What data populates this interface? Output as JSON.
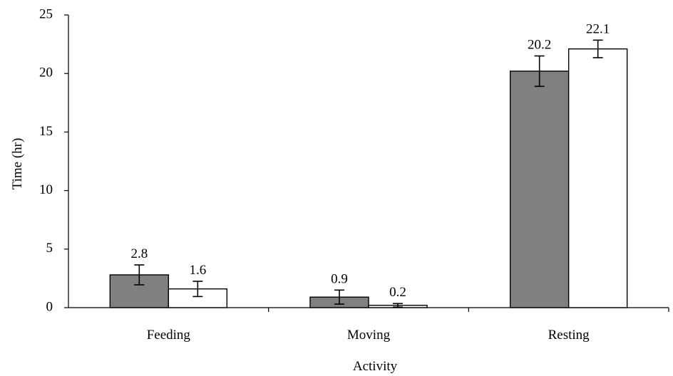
{
  "chart_data": {
    "type": "bar",
    "xlabel": "Activity",
    "ylabel": "Time (hr)",
    "ylim": [
      0,
      25
    ],
    "yticks": [
      0,
      5,
      10,
      15,
      20,
      25
    ],
    "categories": [
      "Feeding",
      "Moving",
      "Resting"
    ],
    "grid": false,
    "series": [
      {
        "fill": "#808080",
        "values": [
          2.8,
          0.9,
          20.2
        ],
        "labels": [
          "2.8",
          "0.9",
          "20.2"
        ],
        "errors": [
          0.85,
          0.6,
          1.3
        ]
      },
      {
        "fill": "#ffffff",
        "values": [
          1.6,
          0.2,
          22.1
        ],
        "labels": [
          "1.6",
          "0.2",
          "22.1"
        ],
        "errors": [
          0.65,
          0.15,
          0.75
        ]
      }
    ]
  }
}
